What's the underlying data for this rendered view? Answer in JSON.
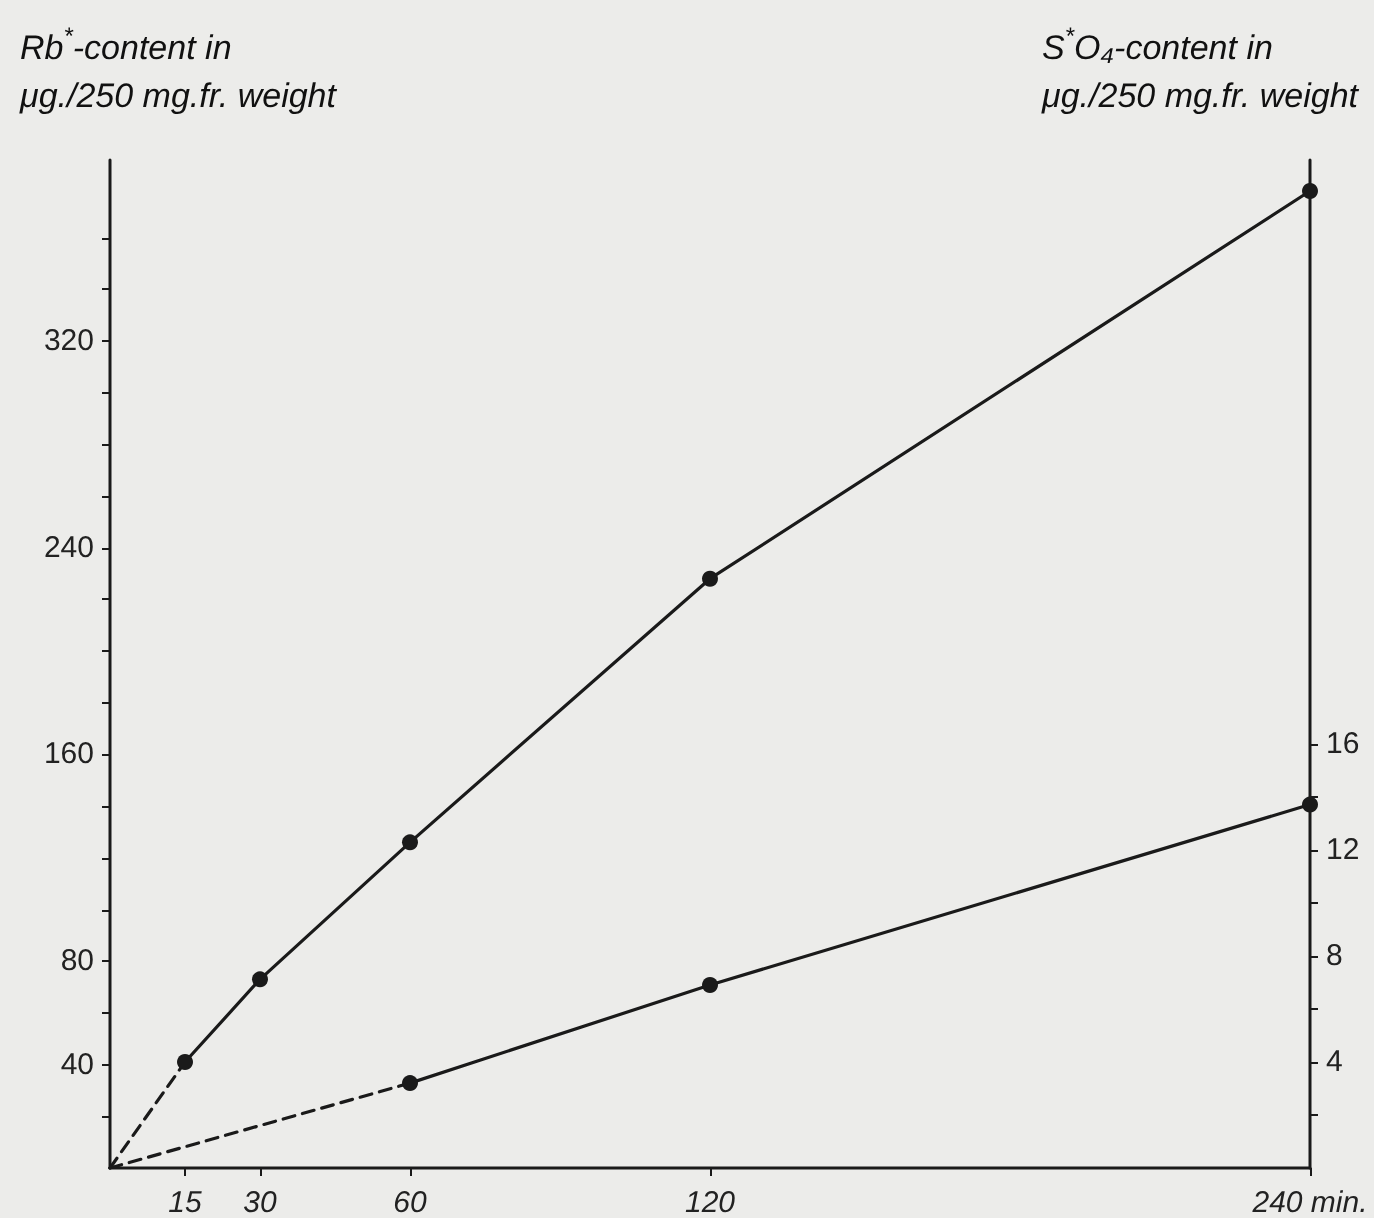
{
  "chart_data": {
    "type": "line",
    "ylabel": "Rb$^{*}$-content in\nμg./250 mg.fr. weight",
    "y2label": "S$^{*}$O₄-content in\nμg./250 mg.fr. weight",
    "xlim": [
      0,
      240
    ],
    "xticks": [
      15,
      30,
      60,
      120,
      {
        "value": 240,
        "label": "240 min."
      }
    ],
    "ylim": [
      0,
      390
    ],
    "yticks": [
      {
        "value": 20,
        "label": null
      },
      40,
      {
        "value": 60,
        "label": null
      },
      80,
      {
        "value": 100,
        "label": null
      },
      {
        "value": 120,
        "label": null
      },
      {
        "value": 140,
        "label": null
      },
      160,
      {
        "value": 180,
        "label": null
      },
      {
        "value": 200,
        "label": null
      },
      {
        "value": 220,
        "label": null
      },
      240,
      {
        "value": 260,
        "label": null
      },
      {
        "value": 280,
        "label": null
      },
      {
        "value": 300,
        "label": null
      },
      320,
      {
        "value": 340,
        "label": null
      },
      {
        "value": 360,
        "label": null
      }
    ],
    "y2lim": [
      0,
      38
    ],
    "y2ticks": [
      {
        "value": 2,
        "label": null
      },
      4,
      {
        "value": 6,
        "label": null
      },
      8,
      {
        "value": 10,
        "label": null
      },
      12,
      {
        "value": 14,
        "label": null
      },
      16
    ],
    "grid": false,
    "series": [
      {
        "color": "#1a1a1a",
        "x": [
          0,
          15
        ],
        "values": [
          0,
          41
        ],
        "line_style": "dashed"
      },
      {
        "color": "#1a1a1a",
        "x": [
          15,
          30,
          60,
          120,
          240
        ],
        "values": [
          41,
          73,
          126,
          228,
          378
        ],
        "line_style": "solid",
        "marker": "circle"
      },
      {
        "color": "#1a1a1a",
        "x": [
          0,
          60
        ],
        "values": [
          0,
          3.2
        ],
        "line_style": "dashed",
        "axis": "y2"
      },
      {
        "color": "#1a1a1a",
        "x": [
          60,
          120,
          240
        ],
        "values": [
          3.2,
          6.9,
          13.7
        ],
        "line_style": "solid",
        "marker": "circle",
        "axis": "y2"
      }
    ]
  }
}
